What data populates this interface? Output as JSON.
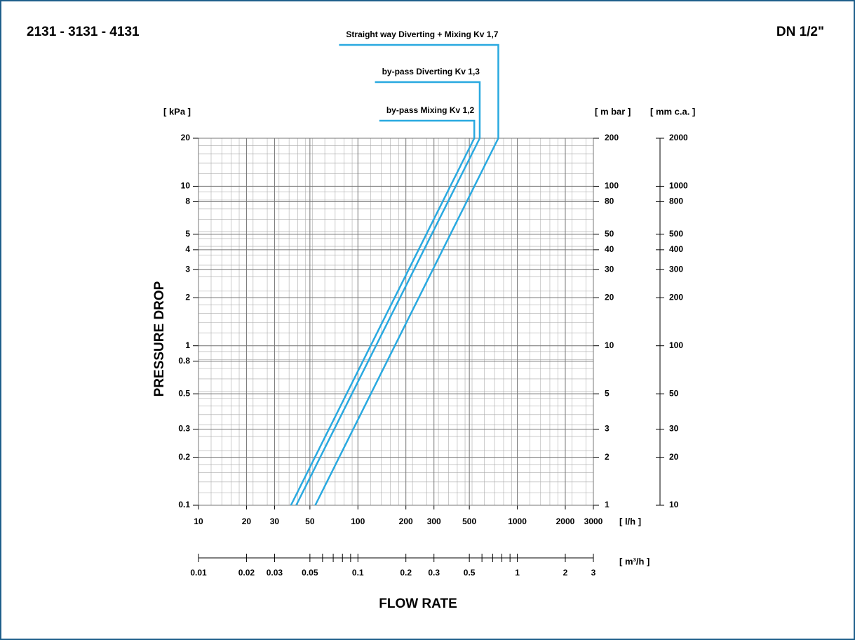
{
  "chart_data": {
    "type": "line",
    "title": "2131 - 3131 - 4131",
    "subtitle": "DN 1/2\"",
    "ylabel": "PRESSURE DROP",
    "xlabel": "FLOW RATE",
    "yunit": "[ kPa ]",
    "y2unit": "[ m bar ]",
    "y3unit": "[ mm c.a. ]",
    "xunit": "[ l/h ]",
    "x2unit": "[ m³/h ]",
    "xscale": "log",
    "yscale": "log",
    "grid": true,
    "xlim": [
      10,
      3000
    ],
    "xticks": [
      10,
      20,
      30,
      50,
      100,
      200,
      300,
      500,
      1000,
      2000,
      3000
    ],
    "ylim": [
      0.1,
      20
    ],
    "yticks": [
      0.1,
      0.2,
      0.3,
      0.5,
      0.8,
      1,
      2,
      3,
      4,
      5,
      8,
      10,
      20
    ],
    "y2lim": [
      1,
      200
    ],
    "y2ticks": [
      1,
      2,
      3,
      5,
      10,
      20,
      30,
      40,
      50,
      80,
      100,
      200
    ],
    "y3lim": [
      10,
      2000
    ],
    "y3ticks": [
      10,
      20,
      30,
      50,
      100,
      200,
      300,
      400,
      500,
      800,
      1000,
      2000
    ],
    "x2lim": [
      0.01,
      3
    ],
    "x2ticks": [
      0.01,
      0.02,
      0.03,
      0.05,
      0.1,
      0.2,
      0.3,
      0.5,
      1,
      2,
      3
    ],
    "x2minorticks": [
      0.06,
      0.07,
      0.08,
      0.09,
      0.6,
      0.7,
      0.8,
      0.9
    ],
    "series": [
      {
        "name": "by-pass Mixing Kv 1,2",
        "color": "#29a9e0",
        "x": [
          38,
          537
        ],
        "values": [
          0.1,
          20
        ]
      },
      {
        "name": "by-pass Diverting Kv 1,3",
        "color": "#29a9e0",
        "x": [
          41,
          581
        ],
        "values": [
          0.1,
          20
        ]
      },
      {
        "name": "Straight way Diverting + Mixing Kv 1,7",
        "color": "#29a9e0",
        "x": [
          54,
          760
        ],
        "values": [
          0.1,
          20
        ]
      }
    ]
  }
}
